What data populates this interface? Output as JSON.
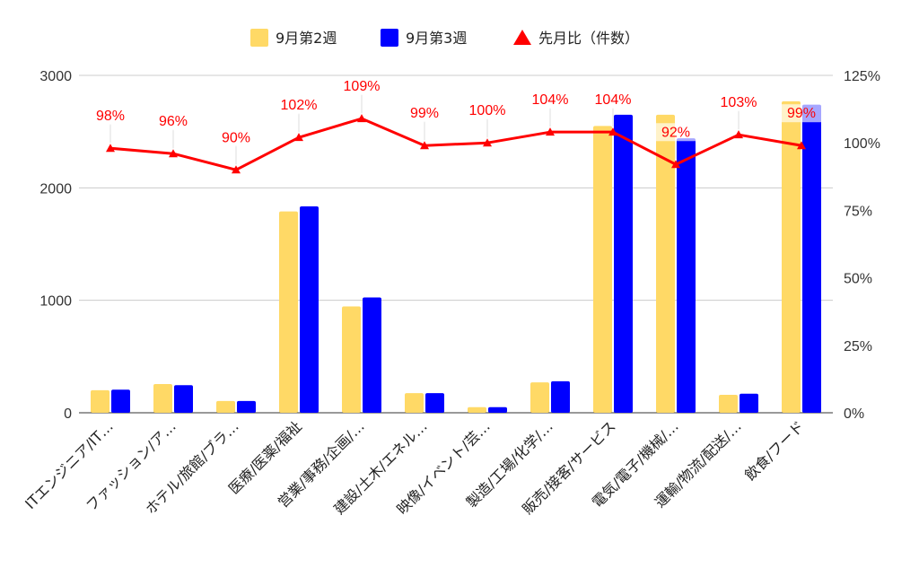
{
  "chart_data": {
    "type": "bar",
    "categories": [
      "ITエンジニア/IT…",
      "ファッション/ア…",
      "ホテル/旅館/ブラ…",
      "医療/医薬/福祉",
      "営業/事務/企画/…",
      "建設/土木/エネル…",
      "映像/イベント/芸…",
      "製造/工場/化学/…",
      "販売/接客/サービス",
      "電気/電子/機械/…",
      "運輸/物流/配送/…",
      "飲食/フード"
    ],
    "series": [
      {
        "name": "9月第2週",
        "type": "bar",
        "color": "#ffd966",
        "values": [
          200,
          255,
          105,
          1790,
          945,
          175,
          50,
          270,
          2550,
          2650,
          160,
          2770
        ]
      },
      {
        "name": "9月第3週",
        "type": "bar",
        "color": "#0000ff",
        "values": [
          205,
          245,
          105,
          1835,
          1025,
          175,
          50,
          280,
          2650,
          2440,
          170,
          2740
        ]
      },
      {
        "name": "先月比（件数）",
        "type": "line",
        "axis": "right",
        "color": "#ff0000",
        "values": [
          98,
          96,
          90,
          102,
          109,
          99,
          100,
          104,
          104,
          92,
          103,
          99
        ]
      }
    ],
    "data_labels": [
      "98%",
      "96%",
      "90%",
      "102%",
      "109%",
      "99%",
      "100%",
      "104%",
      "104%",
      "92%",
      "103%",
      "99%"
    ],
    "y_left": {
      "min": 0,
      "max": 3000,
      "ticks": [
        0,
        1000,
        2000,
        3000
      ],
      "tick_labels": [
        "0",
        "1000",
        "2000",
        "3000"
      ]
    },
    "y_right": {
      "min": 0,
      "max": 125,
      "ticks": [
        0,
        25,
        50,
        75,
        100,
        125
      ],
      "tick_labels": [
        "0%",
        "25%",
        "50%",
        "75%",
        "100%",
        "125%"
      ]
    },
    "legend_position": "top",
    "grid": true
  }
}
